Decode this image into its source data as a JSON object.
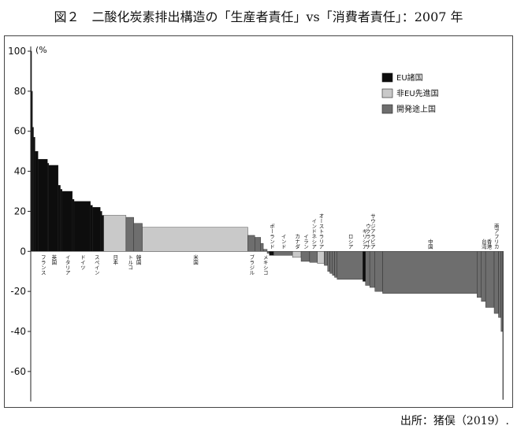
{
  "title": "図２　二酸化炭素排出構造の「生産者責任」vs「消費者責任」：2007 年",
  "source": "出所：猪俣（2019）.",
  "chart_data": {
    "type": "bar",
    "subtype": "variable-width cumulative bar",
    "unit_label": "(%",
    "ylim": [
      -75,
      100
    ],
    "yticks": [
      100,
      80,
      60,
      40,
      20,
      0,
      -20,
      -40,
      -60
    ],
    "legend_position": "top-right",
    "legend": [
      {
        "key": "eu",
        "label": "EU諸国",
        "color": "#0d0d0d"
      },
      {
        "key": "noneu",
        "label": "非EU先進国",
        "color": "#c9c9c9"
      },
      {
        "key": "dev",
        "label": "開発途上国",
        "color": "#6e6e6e"
      }
    ],
    "bars": [
      {
        "x": 0,
        "w": 0.2,
        "v": 100,
        "g": "eu"
      },
      {
        "x": 0.2,
        "w": 0.2,
        "v": 80,
        "g": "eu"
      },
      {
        "x": 0.4,
        "w": 0.25,
        "v": 62,
        "g": "eu"
      },
      {
        "x": 0.65,
        "w": 0.35,
        "v": 57,
        "g": "eu"
      },
      {
        "x": 1.0,
        "w": 0.7,
        "v": 50,
        "g": "eu"
      },
      {
        "x": 1.7,
        "w": 2.2,
        "v": 46,
        "g": "eu"
      },
      {
        "x": 3.9,
        "w": 0.3,
        "v": 44,
        "g": "eu"
      },
      {
        "x": 4.2,
        "w": 2.2,
        "v": 43,
        "g": "eu"
      },
      {
        "x": 6.4,
        "w": 0.5,
        "v": 33,
        "g": "eu"
      },
      {
        "x": 6.9,
        "w": 0.4,
        "v": 31,
        "g": "eu"
      },
      {
        "x": 7.3,
        "w": 2.4,
        "v": 30,
        "g": "eu"
      },
      {
        "x": 9.7,
        "w": 0.4,
        "v": 26,
        "g": "eu"
      },
      {
        "x": 10.1,
        "w": 3.8,
        "v": 25,
        "g": "eu"
      },
      {
        "x": 13.9,
        "w": 0.5,
        "v": 23,
        "g": "eu"
      },
      {
        "x": 14.4,
        "w": 1.8,
        "v": 22,
        "g": "eu"
      },
      {
        "x": 16.2,
        "w": 0.4,
        "v": 20,
        "g": "eu"
      },
      {
        "x": 16.6,
        "w": 0.4,
        "v": 18,
        "g": "eu"
      },
      {
        "x": 17.0,
        "w": 5.2,
        "v": 18,
        "g": "noneu"
      },
      {
        "x": 22.2,
        "w": 1.8,
        "v": 17,
        "g": "dev"
      },
      {
        "x": 24.0,
        "w": 2.0,
        "v": 14,
        "g": "dev"
      },
      {
        "x": 26.0,
        "w": 24.6,
        "v": 12,
        "g": "noneu"
      },
      {
        "x": 50.6,
        "w": 1.6,
        "v": 8,
        "g": "dev"
      },
      {
        "x": 52.2,
        "w": 1.4,
        "v": 7,
        "g": "dev"
      },
      {
        "x": 53.6,
        "w": 0.6,
        "v": 4,
        "g": "dev"
      },
      {
        "x": 54.2,
        "w": 0.9,
        "v": 1,
        "g": "dev"
      },
      {
        "x": 55.1,
        "w": 0.5,
        "v": -1,
        "g": "dev"
      },
      {
        "x": 55.6,
        "w": 1.0,
        "v": -2,
        "g": "eu"
      },
      {
        "x": 56.6,
        "w": 4.4,
        "v": -2,
        "g": "dev"
      },
      {
        "x": 61.0,
        "w": 2.0,
        "v": -3,
        "g": "noneu"
      },
      {
        "x": 63.0,
        "w": 2.0,
        "v": -5,
        "g": "dev"
      },
      {
        "x": 65.0,
        "w": 1.8,
        "v": -5.5,
        "g": "dev"
      },
      {
        "x": 66.8,
        "w": 1.6,
        "v": -6,
        "g": "noneu"
      },
      {
        "x": 68.4,
        "w": 0.8,
        "v": -7,
        "g": "dev"
      },
      {
        "x": 69.2,
        "w": 0.5,
        "v": -10,
        "g": "dev"
      },
      {
        "x": 69.7,
        "w": 0.6,
        "v": -11,
        "g": "dev"
      },
      {
        "x": 70.3,
        "w": 0.5,
        "v": -12,
        "g": "dev"
      },
      {
        "x": 70.8,
        "w": 0.6,
        "v": -13,
        "g": "dev"
      },
      {
        "x": 71.4,
        "w": 6.0,
        "v": -14,
        "g": "dev"
      },
      {
        "x": 77.4,
        "w": 0.6,
        "v": -15,
        "g": "eu"
      },
      {
        "x": 78.0,
        "w": 1.0,
        "v": -17,
        "g": "dev"
      },
      {
        "x": 79.0,
        "w": 1.2,
        "v": -18,
        "g": "dev"
      },
      {
        "x": 80.2,
        "w": 1.8,
        "v": -20,
        "g": "dev"
      },
      {
        "x": 82.0,
        "w": 22.0,
        "v": -21,
        "g": "dev"
      },
      {
        "x": 104.0,
        "w": 1.0,
        "v": -23,
        "g": "dev"
      },
      {
        "x": 105.0,
        "w": 1.0,
        "v": -25,
        "g": "dev"
      },
      {
        "x": 106.0,
        "w": 2.0,
        "v": -28,
        "g": "dev"
      },
      {
        "x": 108.0,
        "w": 1.0,
        "v": -31,
        "g": "dev"
      },
      {
        "x": 109.0,
        "w": 0.6,
        "v": -33,
        "g": "dev"
      },
      {
        "x": 109.6,
        "w": 0.4,
        "v": -40,
        "g": "dev"
      },
      {
        "x": 110.0,
        "w": 0.15,
        "v": -74,
        "g": "dev"
      }
    ],
    "x_total": 110.2,
    "country_labels": [
      {
        "text": "フランス",
        "x": 2.8,
        "side": "below"
      },
      {
        "text": "英国",
        "x": 5.3,
        "side": "below"
      },
      {
        "text": "イタリア",
        "x": 8.5,
        "side": "below"
      },
      {
        "text": "ドイツ",
        "x": 12.0,
        "side": "below"
      },
      {
        "text": "スペイン",
        "x": 15.3,
        "side": "below"
      },
      {
        "text": "日本",
        "x": 19.6,
        "side": "below"
      },
      {
        "text": "トルコ",
        "x": 23.1,
        "side": "below"
      },
      {
        "text": "韓国",
        "x": 25.0,
        "side": "below"
      },
      {
        "text": "米国",
        "x": 38.3,
        "side": "below"
      },
      {
        "text": "ブラジル",
        "x": 51.4,
        "side": "below"
      },
      {
        "text": "メキシコ",
        "x": 54.6,
        "side": "below"
      },
      {
        "text": "ポーランド",
        "x": 56.1,
        "side": "above"
      },
      {
        "text": "インド",
        "x": 58.8,
        "side": "above"
      },
      {
        "text": "カナダ",
        "x": 62.0,
        "side": "above"
      },
      {
        "text": "イラン",
        "x": 64.0,
        "side": "above"
      },
      {
        "text": "インドネシア",
        "x": 65.9,
        "side": "above"
      },
      {
        "text": "オーストラリア",
        "x": 67.6,
        "side": "above"
      },
      {
        "text": "ロシア",
        "x": 74.4,
        "side": "above"
      },
      {
        "text": "ギリシア",
        "x": 77.7,
        "side": "above"
      },
      {
        "text": "ウクライナ",
        "x": 78.5,
        "side": "above"
      },
      {
        "text": "サウジアラビア",
        "x": 79.6,
        "side": "above"
      },
      {
        "text": "中国",
        "x": 93.0,
        "side": "above"
      },
      {
        "text": "台湾",
        "x": 105.5,
        "side": "above"
      },
      {
        "text": "香港",
        "x": 106.7,
        "side": "above"
      },
      {
        "text": "南アフリカ",
        "x": 108.4,
        "side": "above"
      }
    ]
  }
}
